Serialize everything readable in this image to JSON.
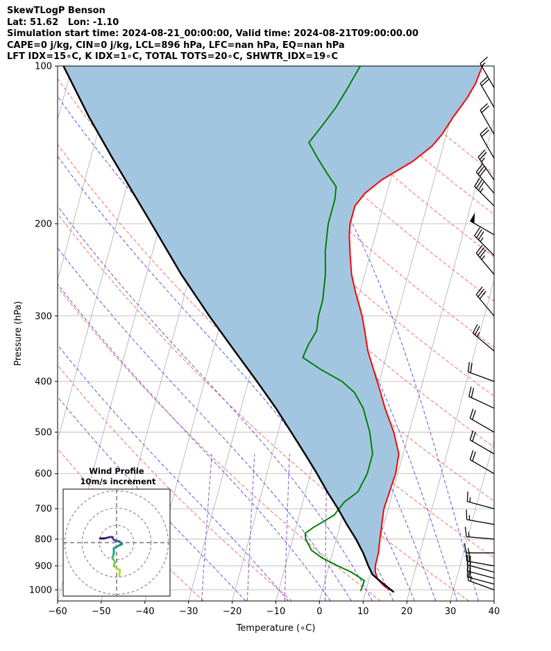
{
  "header": {
    "line1": "SkewTLogP Benson",
    "line2": "Lat: 51.62   Lon: -1.10",
    "line3": "Simulation start time: 2024-08-21_00:00:00, Valid time: 2024-08-21T09:00:00.00",
    "line4": "CAPE=0 j/kg, CIN=0 j/kg, LCL=896 hPa, LFC=nan hPa, EQ=nan hPa",
    "line5": "LFT IDX=15∘C, K IDX=1∘C, TOTAL TOTS=20∘C, SHWTR_IDX=19∘C"
  },
  "chart_data": {
    "type": "line",
    "xlabel": "Temperature (∘C)",
    "ylabel": "Pressure (hPa)",
    "xlim": [
      -60,
      40
    ],
    "ylim": [
      1050,
      100
    ],
    "y_scale": "log",
    "skewed_isotherms": true,
    "grid": true,
    "x_ticks": [
      "−60",
      "−50",
      "−40",
      "−30",
      "−20",
      "−10",
      "0",
      "10",
      "20",
      "30",
      "40"
    ],
    "y_ticks": [
      {
        "p": 1000,
        "label": "1000"
      },
      {
        "p": 900,
        "label": "900"
      },
      {
        "p": 800,
        "label": "800"
      },
      {
        "p": 700,
        "label": "700"
      },
      {
        "p": 600,
        "label": "600"
      },
      {
        "p": 500,
        "label": "500"
      },
      {
        "p": 400,
        "label": "400"
      },
      {
        "p": 300,
        "label": "300"
      },
      {
        "p": 200,
        "label": "200"
      },
      {
        "p": 100,
        "label": "100"
      }
    ],
    "series": [
      {
        "role": "temperature",
        "color": "#ff0000",
        "points": [
          [
            1010,
            16.5
          ],
          [
            985,
            14.0
          ],
          [
            955,
            12.0
          ],
          [
            925,
            11.0
          ],
          [
            900,
            10.6
          ],
          [
            850,
            10.5
          ],
          [
            800,
            10.0
          ],
          [
            750,
            9.5
          ],
          [
            700,
            9.0
          ],
          [
            600,
            9.5
          ],
          [
            550,
            9.0
          ],
          [
            500,
            6.5
          ],
          [
            450,
            3.0
          ],
          [
            420,
            1.0
          ],
          [
            380,
            -2.0
          ],
          [
            350,
            -4.5
          ],
          [
            320,
            -6.5
          ],
          [
            300,
            -8.0
          ],
          [
            270,
            -11.0
          ],
          [
            250,
            -13.0
          ],
          [
            230,
            -14.5
          ],
          [
            210,
            -16.0
          ],
          [
            200,
            -16.5
          ],
          [
            185,
            -16.5
          ],
          [
            175,
            -15.0
          ],
          [
            165,
            -12.0
          ],
          [
            152,
            -6.0
          ],
          [
            142,
            -2.5
          ],
          [
            135,
            -1.0
          ],
          [
            125,
            0.5
          ],
          [
            115,
            2.5
          ],
          [
            108,
            3.5
          ],
          [
            100,
            4.0
          ]
        ]
      },
      {
        "role": "dewpoint",
        "color": "#008000",
        "points": [
          [
            1005,
            8.8
          ],
          [
            960,
            9.0
          ],
          [
            925,
            5.5
          ],
          [
            900,
            2.0
          ],
          [
            870,
            -2.0
          ],
          [
            840,
            -5.0
          ],
          [
            800,
            -7.0
          ],
          [
            780,
            -7.5
          ],
          [
            760,
            -6.0
          ],
          [
            720,
            -2.0
          ],
          [
            680,
            -0.5
          ],
          [
            650,
            2.0
          ],
          [
            600,
            3.0
          ],
          [
            550,
            3.0
          ],
          [
            500,
            1.0
          ],
          [
            450,
            -2.0
          ],
          [
            420,
            -5.0
          ],
          [
            400,
            -8.5
          ],
          [
            380,
            -14.0
          ],
          [
            360,
            -19.0
          ],
          [
            340,
            -18.5
          ],
          [
            320,
            -17.5
          ],
          [
            300,
            -18.0
          ],
          [
            280,
            -18.0
          ],
          [
            250,
            -19.0
          ],
          [
            225,
            -20.5
          ],
          [
            200,
            -21.5
          ],
          [
            180,
            -21.5
          ],
          [
            170,
            -22.0
          ],
          [
            160,
            -25.0
          ],
          [
            150,
            -28.0
          ],
          [
            140,
            -31.0
          ],
          [
            130,
            -29.0
          ],
          [
            120,
            -27.0
          ],
          [
            110,
            -25.5
          ],
          [
            100,
            -24.0
          ]
        ]
      },
      {
        "role": "parcel",
        "color": "#000000",
        "points": [
          [
            1010,
            16.5
          ],
          [
            960,
            12.5
          ],
          [
            935,
            10.5
          ],
          [
            900,
            9.0
          ],
          [
            850,
            7.0
          ],
          [
            800,
            4.5
          ],
          [
            750,
            1.5
          ],
          [
            700,
            -1.5
          ],
          [
            650,
            -5.0
          ],
          [
            600,
            -8.5
          ],
          [
            550,
            -12.5
          ],
          [
            500,
            -17.0
          ],
          [
            450,
            -22.0
          ],
          [
            400,
            -28.0
          ],
          [
            350,
            -35.0
          ],
          [
            300,
            -43.0
          ],
          [
            250,
            -52.0
          ],
          [
            200,
            -62.0
          ],
          [
            150,
            -75.0
          ],
          [
            125,
            -83.0
          ],
          [
            100,
            -92.0
          ]
        ]
      }
    ],
    "wind_barbs": [
      {
        "p": 1000,
        "dir": 290,
        "kt": 15
      },
      {
        "p": 975,
        "dir": 285,
        "kt": 20
      },
      {
        "p": 950,
        "dir": 285,
        "kt": 20
      },
      {
        "p": 925,
        "dir": 285,
        "kt": 20
      },
      {
        "p": 900,
        "dir": 280,
        "kt": 20
      },
      {
        "p": 850,
        "dir": 270,
        "kt": 15
      },
      {
        "p": 800,
        "dir": 275,
        "kt": 15
      },
      {
        "p": 750,
        "dir": 280,
        "kt": 15
      },
      {
        "p": 700,
        "dir": 285,
        "kt": 15
      },
      {
        "p": 600,
        "dir": 300,
        "kt": 20
      },
      {
        "p": 550,
        "dir": 300,
        "kt": 20
      },
      {
        "p": 500,
        "dir": 300,
        "kt": 20
      },
      {
        "p": 450,
        "dir": 295,
        "kt": 20
      },
      {
        "p": 400,
        "dir": 290,
        "kt": 20
      },
      {
        "p": 350,
        "dir": 310,
        "kt": 25
      },
      {
        "p": 300,
        "dir": 320,
        "kt": 30
      },
      {
        "p": 250,
        "dir": 320,
        "kt": 35
      },
      {
        "p": 230,
        "dir": 315,
        "kt": 35
      },
      {
        "p": 210,
        "dir": 300,
        "kt": 50
      },
      {
        "p": 185,
        "dir": 315,
        "kt": 35
      },
      {
        "p": 175,
        "dir": 320,
        "kt": 30
      },
      {
        "p": 165,
        "dir": 325,
        "kt": 25
      },
      {
        "p": 150,
        "dir": 330,
        "kt": 20
      },
      {
        "p": 135,
        "dir": 330,
        "kt": 20
      },
      {
        "p": 120,
        "dir": 330,
        "kt": 20
      },
      {
        "p": 110,
        "dir": 330,
        "kt": 15
      }
    ],
    "hodograph": {
      "title": "Wind Profile",
      "subtitle": "10m/s increment",
      "rings": [
        10,
        20,
        30
      ],
      "points": [
        [
          1.0,
          -12.0
        ],
        [
          1.2,
          -10.0
        ],
        [
          -1.0,
          -8.5
        ],
        [
          -0.6,
          -7.0
        ],
        [
          -1.5,
          -5.5
        ],
        [
          -1.0,
          -4.0
        ],
        [
          -1.0,
          -2.0
        ],
        [
          1.0,
          -1.0
        ],
        [
          2.0,
          -0.5
        ],
        [
          1.0,
          0.5
        ],
        [
          0.0,
          0.5
        ],
        [
          -1.0,
          1.0
        ],
        [
          -1.5,
          2.0
        ],
        [
          -2.5,
          2.0
        ],
        [
          -4.5,
          1.5
        ],
        [
          -6.0,
          1.5
        ]
      ]
    }
  }
}
